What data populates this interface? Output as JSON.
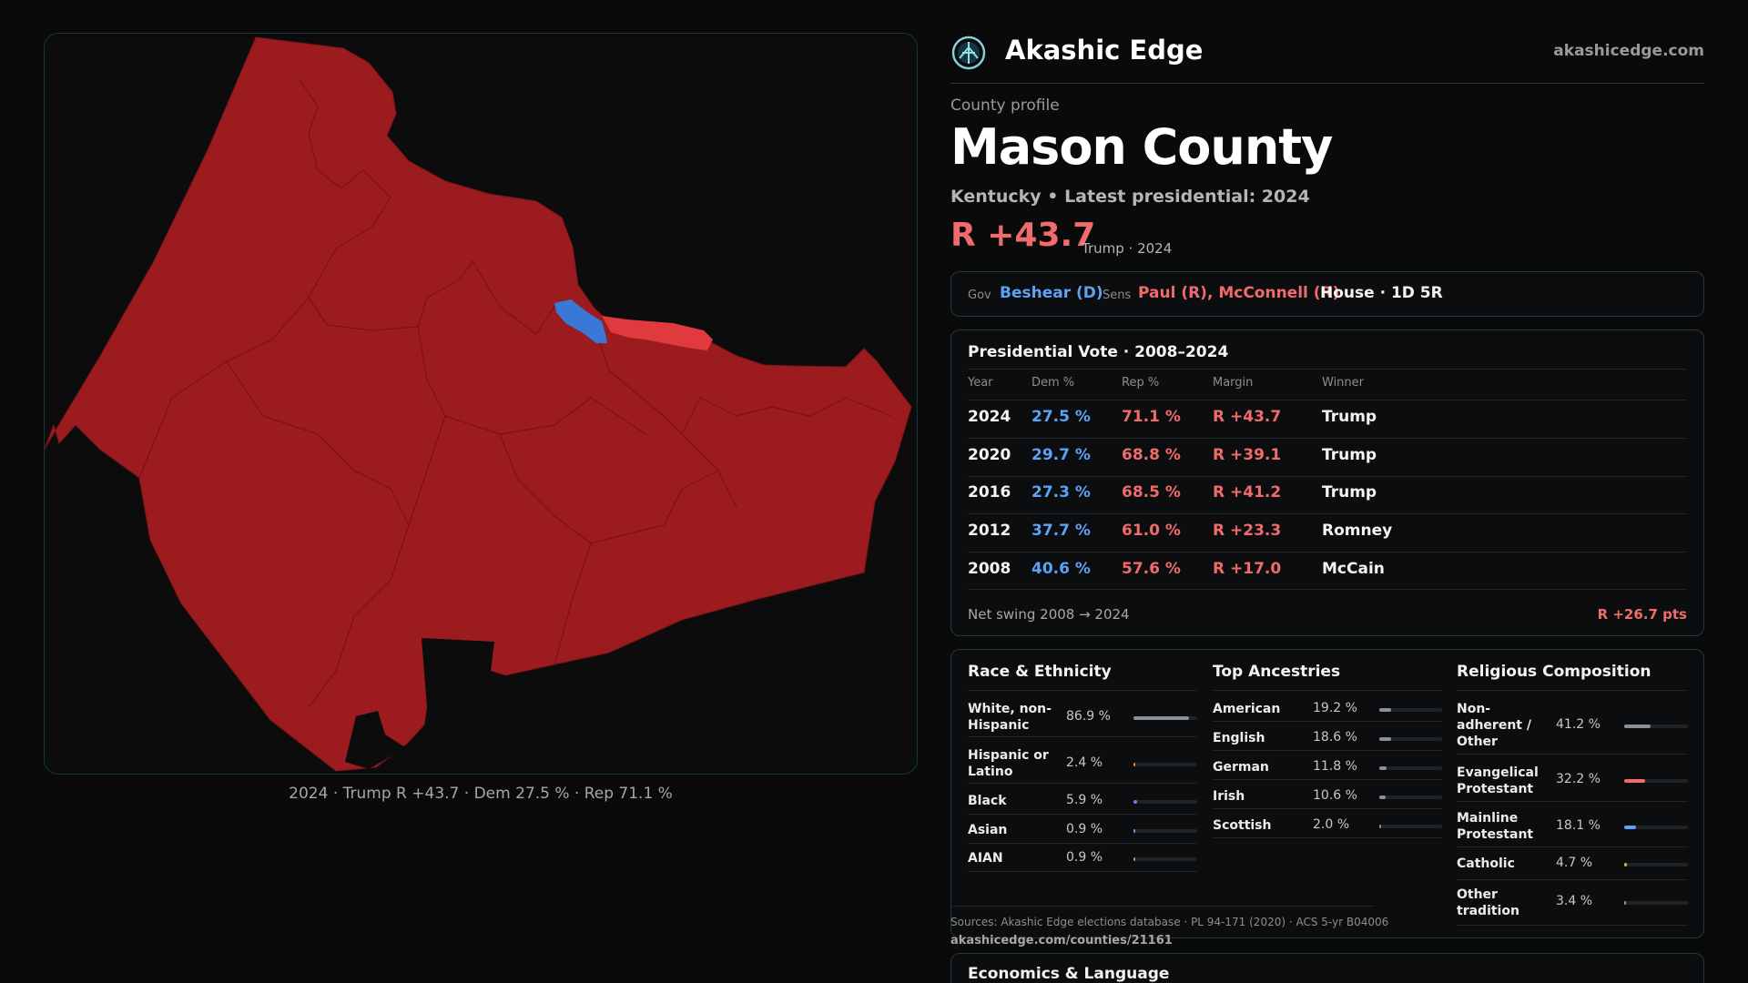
{
  "brand": {
    "name": "Akashic Edge",
    "domain": "akashicedge.com"
  },
  "profile": {
    "kicker": "County profile",
    "title": "Mason County",
    "subtitle": "Kentucky • Latest presidential: 2024",
    "margin": "R +43.7",
    "margin_note": "Trump · 2024"
  },
  "officials": {
    "gov_label": "Gov",
    "gov": "Beshear (D)",
    "sens_label": "Sens",
    "sens": "Paul (R), McConnell (R)",
    "house": "House · 1D 5R"
  },
  "votes": {
    "title": "Presidential Vote · 2008–2024",
    "headers": [
      "Year",
      "Dem %",
      "Rep %",
      "Margin",
      "Winner"
    ],
    "rows": [
      {
        "year": "2024",
        "dem": "27.5 %",
        "rep": "71.1 %",
        "margin": "R +43.7",
        "winner": "Trump"
      },
      {
        "year": "2020",
        "dem": "29.7 %",
        "rep": "68.8 %",
        "margin": "R +39.1",
        "winner": "Trump"
      },
      {
        "year": "2016",
        "dem": "27.3 %",
        "rep": "68.5 %",
        "margin": "R +41.2",
        "winner": "Trump"
      },
      {
        "year": "2012",
        "dem": "37.7 %",
        "rep": "61.0 %",
        "margin": "R +23.3",
        "winner": "Romney"
      },
      {
        "year": "2008",
        "dem": "40.6 %",
        "rep": "57.6 %",
        "margin": "R +17.0",
        "winner": "McCain"
      }
    ],
    "swing_label": "Net swing 2008 → 2024",
    "swing_value": "R +26.7 pts"
  },
  "race": {
    "title": "Race & Ethnicity",
    "items": [
      {
        "label": "White, non-Hispanic",
        "value": "86.9 %",
        "pct": 86.9,
        "color": "#8a8f98"
      },
      {
        "label": "Hispanic or Latino",
        "value": "2.4 %",
        "pct": 2.4,
        "color": "#e0843a"
      },
      {
        "label": "Black",
        "value": "5.9 %",
        "pct": 5.9,
        "color": "#8b6cf0"
      },
      {
        "label": "Asian",
        "value": "0.9 %",
        "pct": 0.9,
        "color": "#5aa0e6"
      },
      {
        "label": "AIAN",
        "value": "0.9 %",
        "pct": 0.9,
        "color": "#9a9a9a"
      }
    ]
  },
  "ancestry": {
    "title": "Top Ancestries",
    "items": [
      {
        "label": "American",
        "value": "19.2 %",
        "pct": 19.2,
        "color": "#8a8f98"
      },
      {
        "label": "English",
        "value": "18.6 %",
        "pct": 18.6,
        "color": "#8a8f98"
      },
      {
        "label": "German",
        "value": "11.8 %",
        "pct": 11.8,
        "color": "#8a8f98"
      },
      {
        "label": "Irish",
        "value": "10.6 %",
        "pct": 10.6,
        "color": "#8a8f98"
      },
      {
        "label": "Scottish",
        "value": "2.0 %",
        "pct": 2.0,
        "color": "#8a8f98"
      }
    ]
  },
  "religion": {
    "title": "Religious Composition",
    "items": [
      {
        "label": "Non-adherent / Other",
        "value": "41.2 %",
        "pct": 41.2,
        "color": "#8a8f98"
      },
      {
        "label": "Evangelical Protestant",
        "value": "32.2 %",
        "pct": 32.2,
        "color": "#f06b6b"
      },
      {
        "label": "Mainline Protestant",
        "value": "18.1 %",
        "pct": 18.1,
        "color": "#5da2f4"
      },
      {
        "label": "Catholic",
        "value": "4.7 %",
        "pct": 4.7,
        "color": "#e0a93a"
      },
      {
        "label": "Other tradition",
        "value": "3.4 %",
        "pct": 3.4,
        "color": "#9a9a9a"
      }
    ]
  },
  "sources": {
    "text": "Sources: Akashic Edge elections database · PL 94-171 (2020) · ACS 5-yr B04006",
    "url": "akashicedge.com/counties/21161"
  },
  "econ": {
    "title": "Economics & Language"
  },
  "map": {
    "caption": "2024 · Trump R +43.7 · Dem 27.5 % · Rep 71.1 %",
    "colors": {
      "rep": "#9b1b1f",
      "rep_light": "#e0393e",
      "dem": "#3a78d8",
      "background": "#0c0c0d",
      "border": "#143640"
    }
  }
}
